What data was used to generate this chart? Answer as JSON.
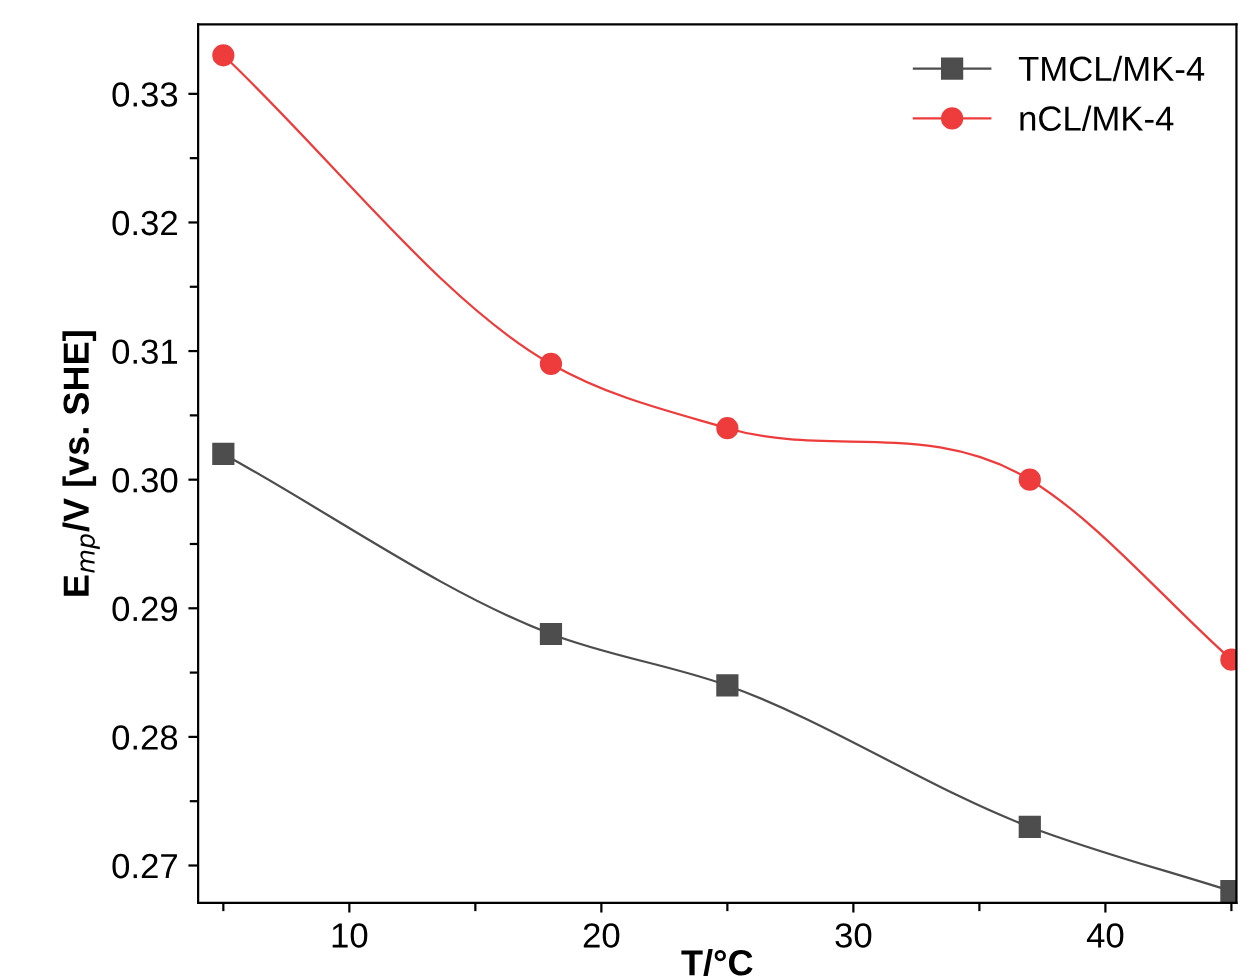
{
  "chart_data": {
    "type": "line",
    "xlabel": "T/°C",
    "ylabel": "E$_{mp}$/V [vs. SHE]",
    "x": [
      5,
      18,
      25,
      37,
      45
    ],
    "series": [
      {
        "name": "TMCL/MK-4",
        "color": "#4d4d4d",
        "marker": "square",
        "values": [
          0.302,
          0.288,
          0.284,
          0.273,
          0.268
        ]
      },
      {
        "name": "nCL/MK-4",
        "color": "#ee3b3b",
        "marker": "circle",
        "values": [
          0.333,
          0.309,
          0.304,
          0.3,
          0.286
        ]
      }
    ],
    "xlim": [
      4,
      45.2
    ],
    "ylim": [
      0.2671,
      0.3354
    ],
    "xticks": [
      {
        "value": 5,
        "label": null
      },
      10,
      {
        "value": 15,
        "label": null
      },
      20,
      {
        "value": 25,
        "label": null
      },
      30,
      {
        "value": 35,
        "label": null
      },
      40,
      {
        "value": 45,
        "label": null
      }
    ],
    "yticks": [
      0.27,
      {
        "value": 0.275,
        "label": null
      },
      0.28,
      {
        "value": 0.285,
        "label": null
      },
      0.29,
      {
        "value": 0.295,
        "label": null
      },
      {
        "value": 0.3,
        "label": "0.30"
      },
      {
        "value": 0.305,
        "label": null
      },
      0.31,
      {
        "value": 0.315,
        "label": null
      },
      0.32,
      {
        "value": 0.325,
        "label": null
      },
      0.33
    ],
    "grid": false,
    "legend": "top right",
    "line_style": "solid"
  }
}
